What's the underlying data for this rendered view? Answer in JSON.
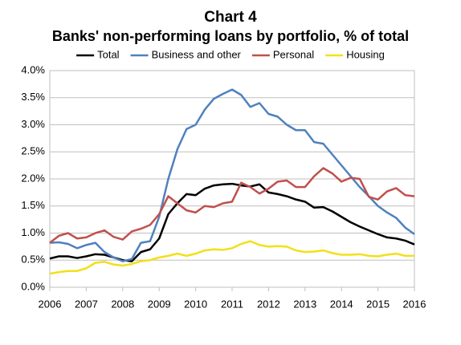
{
  "chart_data": {
    "type": "line",
    "title": "Chart 4",
    "subtitle": "Banks' non-performing loans by portfolio, % of total",
    "x": [
      2006,
      2006.25,
      2006.5,
      2006.75,
      2007,
      2007.25,
      2007.5,
      2007.75,
      2008,
      2008.25,
      2008.5,
      2008.75,
      2009,
      2009.25,
      2009.5,
      2009.75,
      2010,
      2010.25,
      2010.5,
      2010.75,
      2011,
      2011.25,
      2011.5,
      2011.75,
      2012,
      2012.25,
      2012.5,
      2012.75,
      2013,
      2013.25,
      2013.5,
      2013.75,
      2014,
      2014.25,
      2014.5,
      2014.75,
      2015,
      2015.25,
      2015.5,
      2015.75,
      2016
    ],
    "series": [
      {
        "name": "Total",
        "color": "#000000",
        "values": [
          0.53,
          0.57,
          0.57,
          0.54,
          0.57,
          0.61,
          0.6,
          0.55,
          0.5,
          0.48,
          0.65,
          0.7,
          0.9,
          1.35,
          1.55,
          1.72,
          1.7,
          1.82,
          1.88,
          1.9,
          1.91,
          1.88,
          1.86,
          1.9,
          1.75,
          1.72,
          1.68,
          1.62,
          1.58,
          1.47,
          1.48,
          1.4,
          1.3,
          1.2,
          1.12,
          1.05,
          0.98,
          0.92,
          0.9,
          0.86,
          0.79
        ]
      },
      {
        "name": "Business and other",
        "color": "#4f81bd",
        "values": [
          0.82,
          0.83,
          0.8,
          0.72,
          0.78,
          0.82,
          0.65,
          0.55,
          0.48,
          0.52,
          0.82,
          0.85,
          1.3,
          2.0,
          2.55,
          2.92,
          3.0,
          3.28,
          3.48,
          3.57,
          3.65,
          3.55,
          3.33,
          3.4,
          3.2,
          3.15,
          3.0,
          2.9,
          2.9,
          2.68,
          2.65,
          2.45,
          2.25,
          2.05,
          1.85,
          1.68,
          1.5,
          1.38,
          1.28,
          1.1,
          0.98
        ]
      },
      {
        "name": "Personal",
        "color": "#c0504d",
        "values": [
          0.82,
          0.95,
          1.0,
          0.9,
          0.92,
          1.0,
          1.05,
          0.93,
          0.88,
          1.03,
          1.08,
          1.15,
          1.35,
          1.68,
          1.55,
          1.42,
          1.38,
          1.5,
          1.48,
          1.55,
          1.58,
          1.93,
          1.85,
          1.73,
          1.82,
          1.95,
          1.97,
          1.85,
          1.85,
          2.05,
          2.2,
          2.1,
          1.95,
          2.02,
          2.0,
          1.67,
          1.62,
          1.77,
          1.83,
          1.7,
          1.68
        ]
      },
      {
        "name": "Housing",
        "color": "#f2e01a",
        "values": [
          0.25,
          0.28,
          0.3,
          0.3,
          0.35,
          0.45,
          0.47,
          0.42,
          0.4,
          0.43,
          0.48,
          0.5,
          0.55,
          0.58,
          0.62,
          0.58,
          0.62,
          0.68,
          0.7,
          0.69,
          0.72,
          0.8,
          0.85,
          0.78,
          0.75,
          0.76,
          0.75,
          0.68,
          0.65,
          0.66,
          0.68,
          0.63,
          0.6,
          0.6,
          0.61,
          0.58,
          0.57,
          0.6,
          0.62,
          0.58,
          0.58
        ]
      }
    ],
    "xlim": [
      2006,
      2016
    ],
    "xticks": [
      2006,
      2007,
      2008,
      2009,
      2010,
      2011,
      2012,
      2013,
      2014,
      2015,
      2016
    ],
    "ylim": [
      0,
      4
    ],
    "yticks": [
      {
        "value": 0,
        "label": "0.0%"
      },
      {
        "value": 0.5,
        "label": "0.5%"
      },
      {
        "value": 1,
        "label": "1.0%"
      },
      {
        "value": 1.5,
        "label": "1.5%"
      },
      {
        "value": 2,
        "label": "2.0%"
      },
      {
        "value": 2.5,
        "label": "2.5%"
      },
      {
        "value": 3,
        "label": "3.0%"
      },
      {
        "value": 3.5,
        "label": "3.5%"
      },
      {
        "value": 4,
        "label": "4.0%"
      }
    ],
    "grid": true,
    "title_color": "#c00000"
  }
}
